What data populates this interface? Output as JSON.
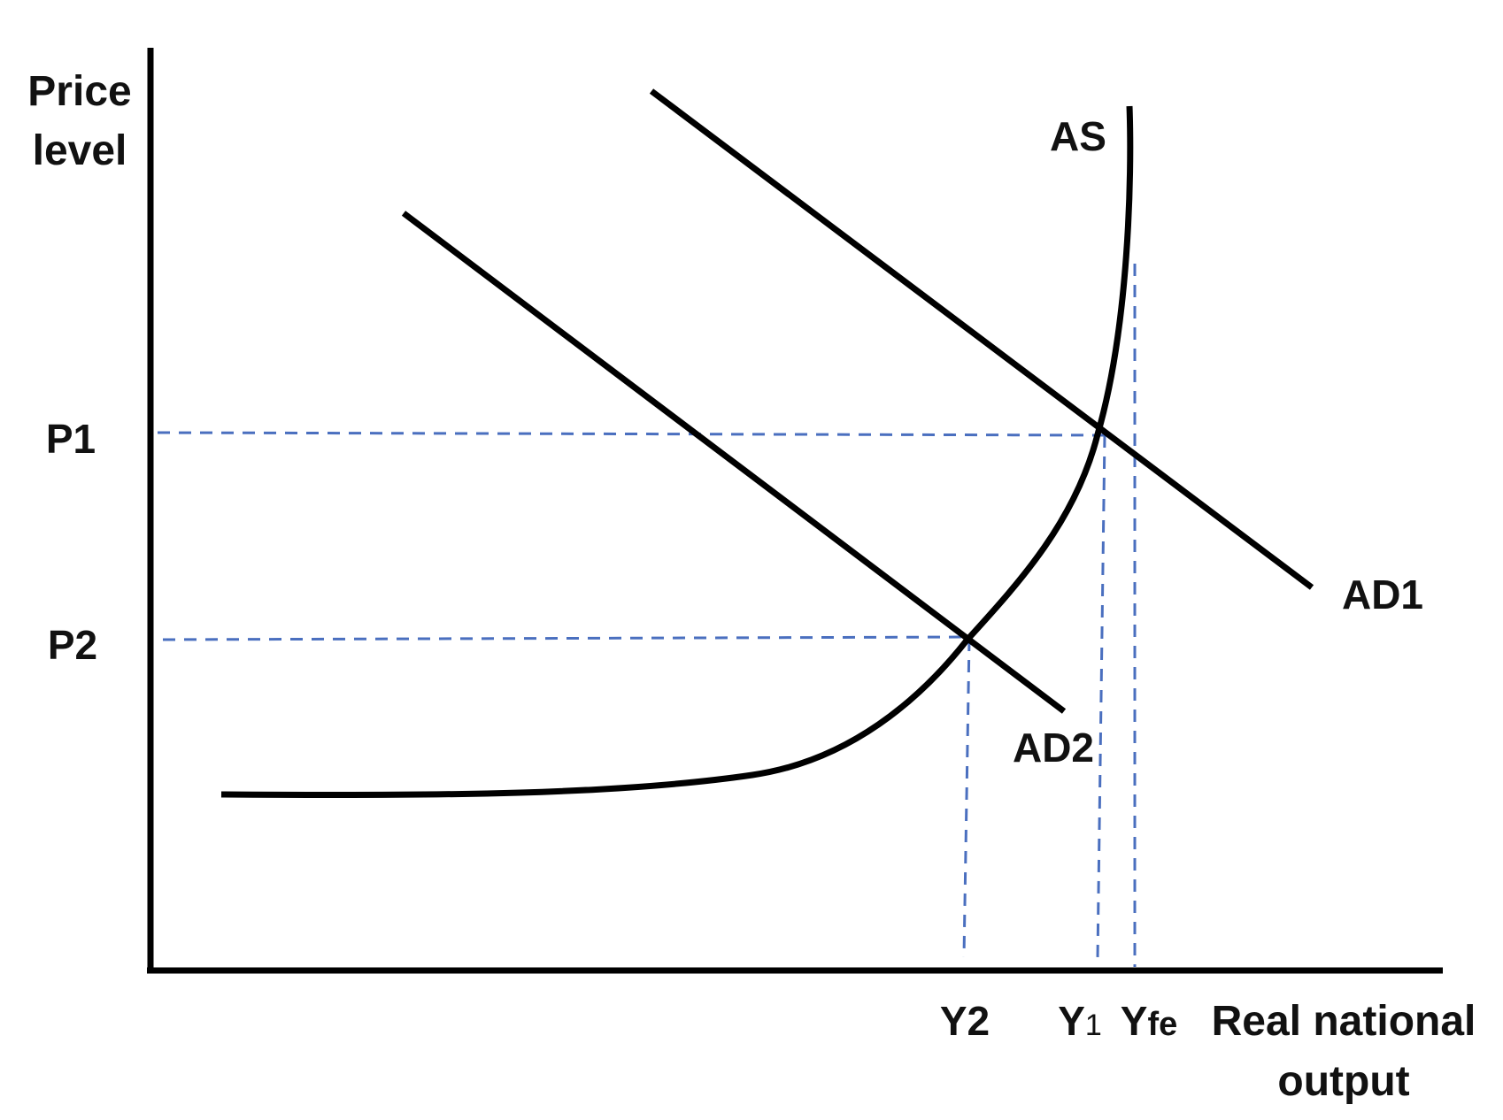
{
  "axes": {
    "y_label_line1": "Price",
    "y_label_line2": "level",
    "x_label_line1": "Real national",
    "x_label_line2": "output"
  },
  "price_levels": {
    "p1": "P1",
    "p2": "P2"
  },
  "output_levels": {
    "y2": "Y2",
    "y1_base": "Y",
    "y1_sub": "1",
    "yfe_base": "Y",
    "yfe_sub": "fe"
  },
  "curves": {
    "as": "AS",
    "ad1": "AD1",
    "ad2": "AD2"
  },
  "colors": {
    "curves": "#000000",
    "guides": "#4a6fbf"
  }
}
